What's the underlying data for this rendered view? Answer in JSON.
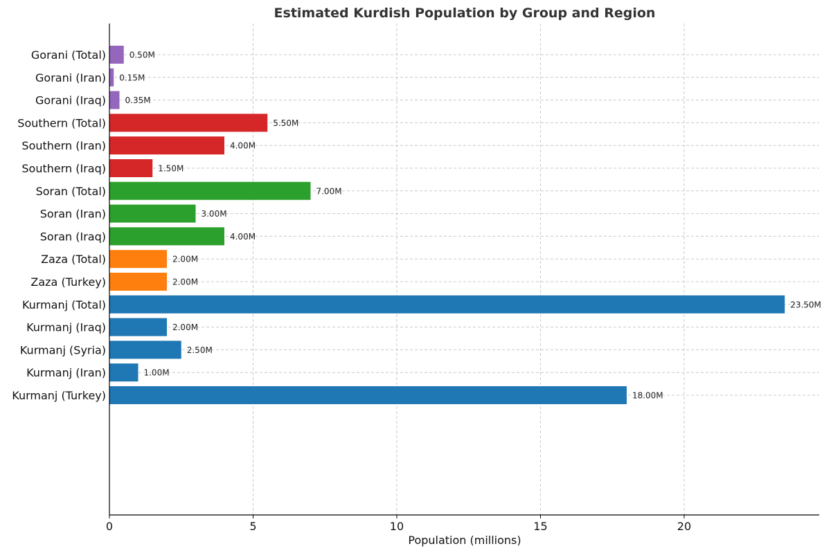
{
  "chart_data": {
    "type": "bar",
    "orientation": "horizontal",
    "title": "Estimated Kurdish Population by Group and Region",
    "xlabel": "Population (millions)",
    "ylabel": "",
    "xlim": [
      0,
      24.7
    ],
    "xticks": [
      0,
      5,
      10,
      15,
      20
    ],
    "grid": true,
    "value_format_suffix": "M",
    "groups": [
      {
        "name": "Gorani",
        "color": "#9467bd",
        "bars": [
          {
            "label": "Gorani (Total)",
            "value": 0.5,
            "value_label": "0.50M"
          },
          {
            "label": "Gorani (Iran)",
            "value": 0.15,
            "value_label": "0.15M"
          },
          {
            "label": "Gorani (Iraq)",
            "value": 0.35,
            "value_label": "0.35M"
          }
        ]
      },
      {
        "name": "Southern",
        "color": "#d62728",
        "bars": [
          {
            "label": "Southern (Total)",
            "value": 5.5,
            "value_label": "5.50M"
          },
          {
            "label": "Southern (Iran)",
            "value": 4.0,
            "value_label": "4.00M"
          },
          {
            "label": "Southern (Iraq)",
            "value": 1.5,
            "value_label": "1.50M"
          }
        ]
      },
      {
        "name": "Soran",
        "color": "#2ca02c",
        "bars": [
          {
            "label": "Soran (Total)",
            "value": 7.0,
            "value_label": "7.00M"
          },
          {
            "label": "Soran (Iran)",
            "value": 3.0,
            "value_label": "3.00M"
          },
          {
            "label": "Soran (Iraq)",
            "value": 4.0,
            "value_label": "4.00M"
          }
        ]
      },
      {
        "name": "Zaza",
        "color": "#ff7f0e",
        "bars": [
          {
            "label": "Zaza (Total)",
            "value": 2.0,
            "value_label": "2.00M"
          },
          {
            "label": "Zaza (Turkey)",
            "value": 2.0,
            "value_label": "2.00M"
          }
        ]
      },
      {
        "name": "Kurmanj",
        "color": "#1f77b4",
        "bars": [
          {
            "label": "Kurmanj (Total)",
            "value": 23.5,
            "value_label": "23.50M"
          },
          {
            "label": "Kurmanj (Iraq)",
            "value": 2.0,
            "value_label": "2.00M"
          },
          {
            "label": "Kurmanj (Syria)",
            "value": 2.5,
            "value_label": "2.50M"
          },
          {
            "label": "Kurmanj (Iran)",
            "value": 1.0,
            "value_label": "1.00M"
          },
          {
            "label": "Kurmanj (Turkey)",
            "value": 18.0,
            "value_label": "18.00M"
          }
        ]
      }
    ]
  }
}
